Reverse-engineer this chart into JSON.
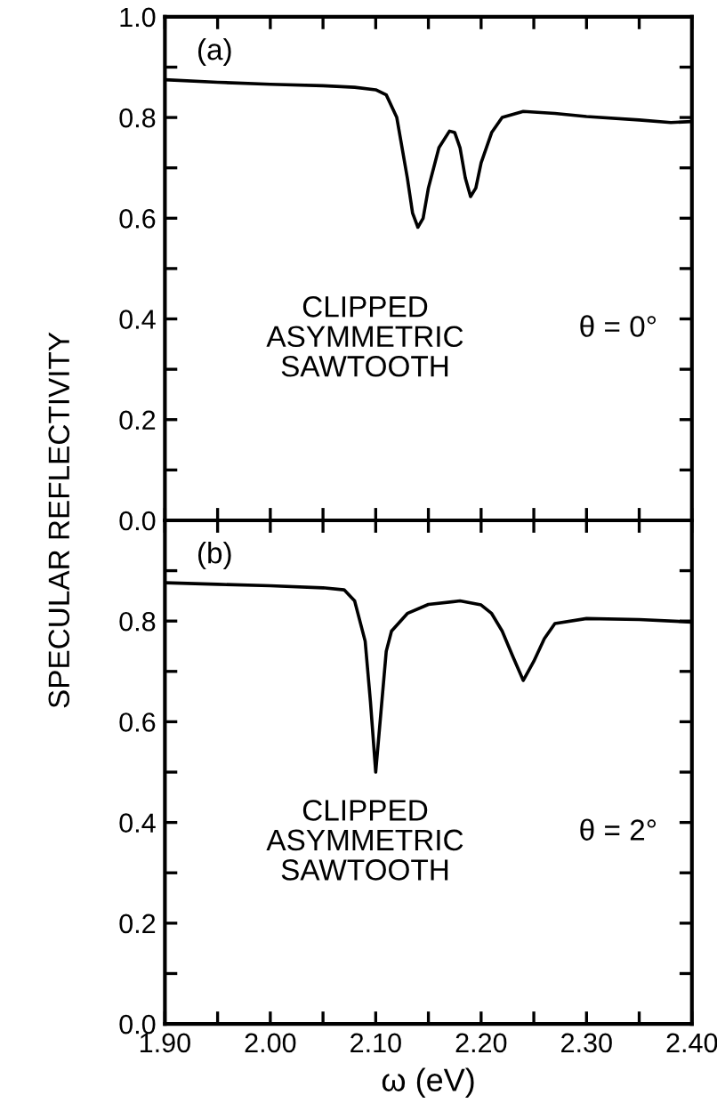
{
  "chart_data": [
    {
      "type": "line",
      "ylabel": "SPECULAR REFLECTIVITY",
      "annotations": [
        "(a)",
        "CLIPPED\nASYMMETRIC\nSAWTOOTH",
        "θ = 0°"
      ],
      "series": [
        {
          "color": "#000000",
          "x": [
            1.9,
            1.95,
            2.0,
            2.05,
            2.08,
            2.1,
            2.11,
            2.12,
            2.13,
            2.135,
            2.14,
            2.145,
            2.15,
            2.16,
            2.17,
            2.175,
            2.18,
            2.185,
            2.19,
            2.195,
            2.2,
            2.21,
            2.22,
            2.24,
            2.27,
            2.3,
            2.35,
            2.38,
            2.4
          ],
          "values": [
            0.875,
            0.87,
            0.866,
            0.863,
            0.86,
            0.855,
            0.845,
            0.8,
            0.68,
            0.61,
            0.582,
            0.6,
            0.66,
            0.74,
            0.773,
            0.77,
            0.74,
            0.68,
            0.643,
            0.66,
            0.71,
            0.77,
            0.8,
            0.812,
            0.808,
            0.802,
            0.795,
            0.79,
            0.792
          ]
        }
      ],
      "xlim": [
        1.9,
        2.4
      ],
      "xticks": [
        {
          "value": 1.9,
          "label": null
        },
        {
          "value": 1.95,
          "label": null
        },
        {
          "value": 2.0,
          "label": null
        },
        {
          "value": 2.05,
          "label": null
        },
        {
          "value": 2.1,
          "label": null
        },
        {
          "value": 2.15,
          "label": null
        },
        {
          "value": 2.2,
          "label": null
        },
        {
          "value": 2.25,
          "label": null
        },
        {
          "value": 2.3,
          "label": null
        },
        {
          "value": 2.35,
          "label": null
        },
        {
          "value": 2.4,
          "label": null
        }
      ],
      "ylim": [
        0,
        1.0
      ],
      "yticks": [
        {
          "value": 0,
          "label": "0.0"
        },
        {
          "value": 0.1,
          "label": null
        },
        0.2,
        {
          "value": 0.3,
          "label": null
        },
        0.4,
        {
          "value": 0.5,
          "label": null
        },
        0.6,
        {
          "value": 0.7,
          "label": null
        },
        0.8,
        {
          "value": 0.9,
          "label": null
        },
        {
          "value": 1.0,
          "label": "1.0"
        }
      ],
      "tick_labels": "y",
      "marker": "none",
      "line_style": "solid",
      "grid": false,
      "legend": false
    },
    {
      "type": "line",
      "xlabel": "ω (eV)",
      "annotations": [
        "(b)",
        "CLIPPED\nASYMMETRIC\nSAWTOOTH",
        "θ = 2°"
      ],
      "series": [
        {
          "color": "#000000",
          "x": [
            1.9,
            1.95,
            2.0,
            2.05,
            2.07,
            2.08,
            2.09,
            2.095,
            2.1,
            2.105,
            2.11,
            2.115,
            2.13,
            2.15,
            2.18,
            2.2,
            2.21,
            2.22,
            2.23,
            2.24,
            2.25,
            2.26,
            2.27,
            2.3,
            2.35,
            2.4
          ],
          "values": [
            0.876,
            0.873,
            0.87,
            0.866,
            0.862,
            0.84,
            0.76,
            0.64,
            0.5,
            0.62,
            0.74,
            0.78,
            0.815,
            0.833,
            0.84,
            0.832,
            0.815,
            0.78,
            0.73,
            0.682,
            0.72,
            0.765,
            0.795,
            0.805,
            0.803,
            0.798
          ]
        }
      ],
      "xlim": [
        1.9,
        2.4
      ],
      "xticks": [
        {
          "value": 1.9,
          "label": "1.90"
        },
        {
          "value": 1.95,
          "label": null
        },
        {
          "value": 2.0,
          "label": "2.00"
        },
        {
          "value": 2.05,
          "label": null
        },
        {
          "value": 2.1,
          "label": "2.10"
        },
        {
          "value": 2.15,
          "label": null
        },
        {
          "value": 2.2,
          "label": "2.20"
        },
        {
          "value": 2.25,
          "label": null
        },
        {
          "value": 2.3,
          "label": "2.30"
        },
        {
          "value": 2.35,
          "label": null
        },
        {
          "value": 2.4,
          "label": "2.40"
        }
      ],
      "ylim": [
        0,
        1.0
      ],
      "yticks": [
        {
          "value": 0,
          "label": "0.0"
        },
        {
          "value": 0.1,
          "label": null
        },
        0.2,
        {
          "value": 0.3,
          "label": null
        },
        0.4,
        {
          "value": 0.5,
          "label": null
        },
        0.6,
        {
          "value": 0.7,
          "label": null
        },
        0.8,
        {
          "value": 0.9,
          "label": null
        },
        {
          "value": 1.0,
          "label": null
        }
      ],
      "marker": "none",
      "line_style": "solid",
      "grid": false,
      "legend": false
    }
  ]
}
